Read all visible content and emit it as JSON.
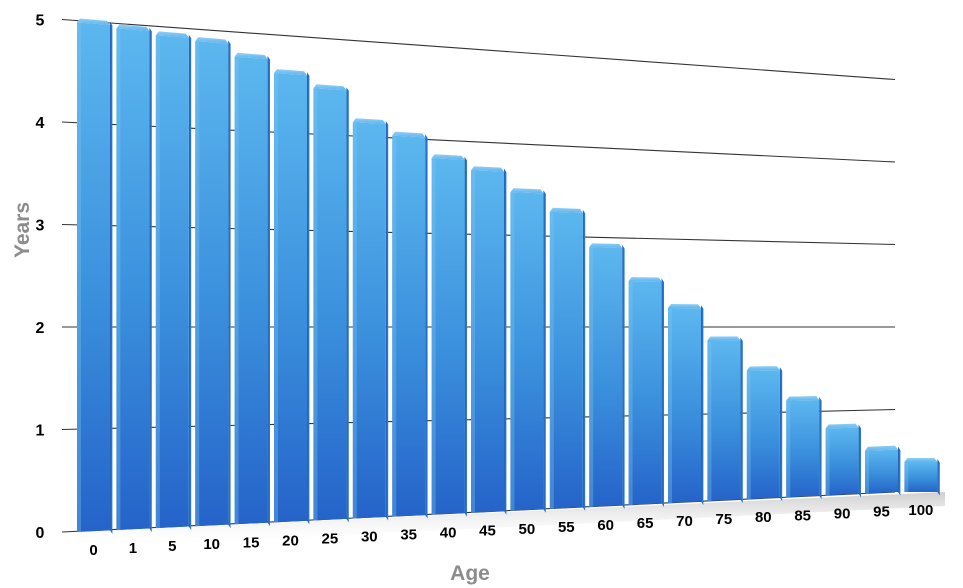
{
  "chart_data": {
    "type": "bar",
    "title": "",
    "xlabel": "Age",
    "ylabel": "Years",
    "categories": [
      "0",
      "1",
      "5",
      "10",
      "15",
      "20",
      "25",
      "30",
      "35",
      "40",
      "45",
      "50",
      "55",
      "60",
      "65",
      "70",
      "75",
      "80",
      "85",
      "90",
      "95",
      "100"
    ],
    "values": [
      5.0,
      4.97,
      4.93,
      4.9,
      4.77,
      4.63,
      4.5,
      4.17,
      4.05,
      3.83,
      3.72,
      3.5,
      3.3,
      2.92,
      2.55,
      2.25,
      1.88,
      1.53,
      1.17,
      0.83,
      0.55,
      0.4
    ],
    "yticks": [
      "0",
      "1",
      "2",
      "3",
      "4",
      "5"
    ],
    "ylim": [
      0,
      5
    ],
    "grid": true,
    "legend": "none",
    "colors": {
      "bar_top": "#5cb7ef",
      "bar_mid": "#3a8fdc",
      "bar_bottom": "#2563c9",
      "gridline": "#333333",
      "axis_title": "#8c8c8c"
    }
  }
}
